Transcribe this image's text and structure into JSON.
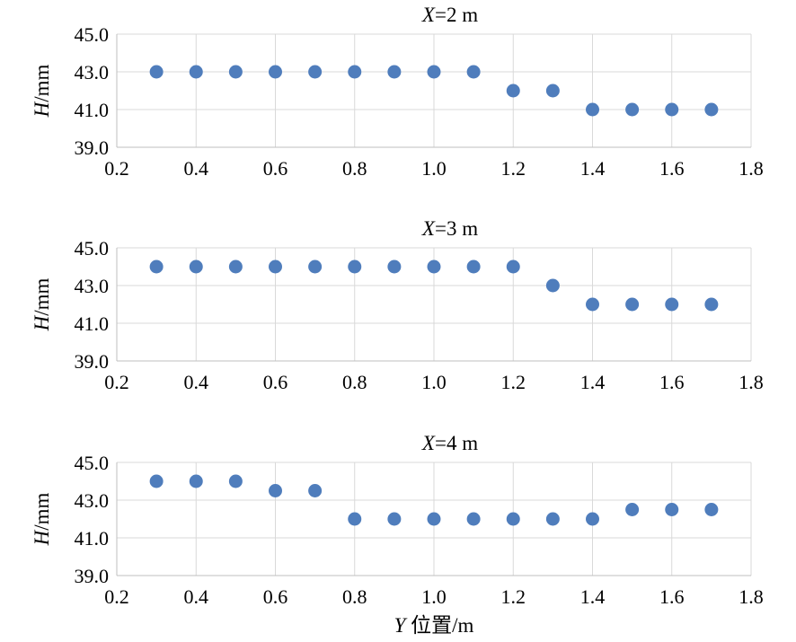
{
  "chart_data": [
    {
      "type": "scatter",
      "title_var": "X",
      "title_rest": "=2 m",
      "ylabel_var": "H",
      "ylabel_rest": "/mm",
      "xlim": [
        0.2,
        1.8
      ],
      "ylim": [
        39.0,
        45.0
      ],
      "xticks": [
        "0.2",
        "0.4",
        "0.6",
        "0.8",
        "1.0",
        "1.2",
        "1.4",
        "1.6",
        "1.8"
      ],
      "yticks": [
        "39.0",
        "41.0",
        "43.0",
        "45.0"
      ],
      "grid": true,
      "series": [
        {
          "color": "#4f7dbc",
          "x": [
            0.3,
            0.4,
            0.5,
            0.6,
            0.7,
            0.8,
            0.9,
            1.0,
            1.1,
            1.2,
            1.3,
            1.4,
            1.5,
            1.6,
            1.7
          ],
          "y": [
            43,
            43,
            43,
            43,
            43,
            43,
            43,
            43,
            43,
            42,
            42,
            41,
            41,
            41,
            41
          ]
        }
      ]
    },
    {
      "type": "scatter",
      "title_var": "X",
      "title_rest": "=3 m",
      "ylabel_var": "H",
      "ylabel_rest": "/mm",
      "xlim": [
        0.2,
        1.8
      ],
      "ylim": [
        39.0,
        45.0
      ],
      "xticks": [
        "0.2",
        "0.4",
        "0.6",
        "0.8",
        "1.0",
        "1.2",
        "1.4",
        "1.6",
        "1.8"
      ],
      "yticks": [
        "39.0",
        "41.0",
        "43.0",
        "45.0"
      ],
      "grid": true,
      "series": [
        {
          "color": "#4f7dbc",
          "x": [
            0.3,
            0.4,
            0.5,
            0.6,
            0.7,
            0.8,
            0.9,
            1.0,
            1.1,
            1.2,
            1.3,
            1.4,
            1.5,
            1.6,
            1.7
          ],
          "y": [
            44,
            44,
            44,
            44,
            44,
            44,
            44,
            44,
            44,
            44,
            43,
            42,
            42,
            42,
            42
          ]
        }
      ]
    },
    {
      "type": "scatter",
      "title_var": "X",
      "title_rest": "=4 m",
      "ylabel_var": "H",
      "ylabel_rest": "/mm",
      "xlabel_var": "Y",
      "xlabel_rest": " 位置/m",
      "xlim": [
        0.2,
        1.8
      ],
      "ylim": [
        39.0,
        45.0
      ],
      "xticks": [
        "0.2",
        "0.4",
        "0.6",
        "0.8",
        "1.0",
        "1.2",
        "1.4",
        "1.6",
        "1.8"
      ],
      "yticks": [
        "39.0",
        "41.0",
        "43.0",
        "45.0"
      ],
      "grid": true,
      "series": [
        {
          "color": "#4f7dbc",
          "x": [
            0.3,
            0.4,
            0.5,
            0.6,
            0.7,
            0.8,
            0.9,
            1.0,
            1.1,
            1.2,
            1.3,
            1.4,
            1.5,
            1.6,
            1.7
          ],
          "y": [
            44,
            44,
            44,
            43.5,
            43.5,
            42,
            42,
            42,
            42,
            42,
            42,
            42,
            42.5,
            42.5,
            42.5
          ]
        }
      ]
    }
  ]
}
